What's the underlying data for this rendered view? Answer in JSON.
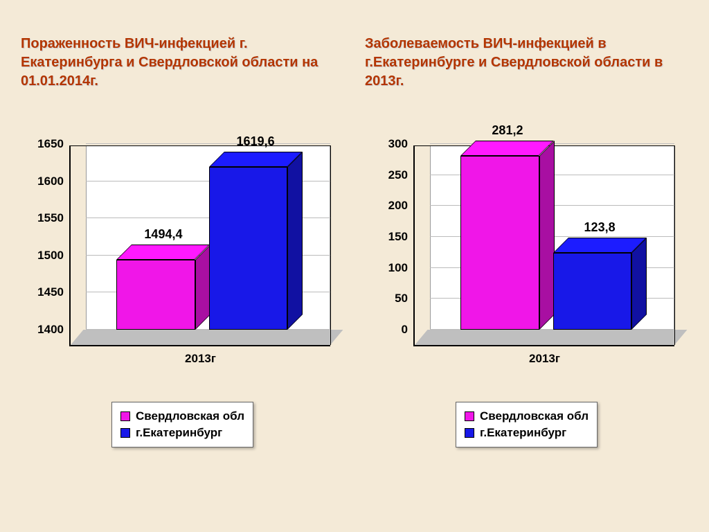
{
  "background_color": "#f4ead7",
  "title_color": "#b33500",
  "title_fontsize": 20,
  "axis_fontsize": 17,
  "series_colors": {
    "sverdlovsk": "#f016e8",
    "ekb": "#1818e8"
  },
  "legend": {
    "items": [
      {
        "label": "Свердловская обл",
        "color_key": "sverdlovsk"
      },
      {
        "label": "г.Екатеринбург",
        "color_key": "ekb"
      }
    ]
  },
  "charts": [
    {
      "title": "Пораженность ВИЧ-инфекцией г. Екатеринбурга и Свердловской области на 01.01.2014г.",
      "type": "bar-3d",
      "ymin": 1400,
      "ymax": 1650,
      "ytick_step": 50,
      "yticks": [
        "1400",
        "1450",
        "1500",
        "1550",
        "1600",
        "1650"
      ],
      "xlabel": "2013г",
      "bars": [
        {
          "series": "sverdlovsk",
          "value": 1494.4,
          "label": "1494,4"
        },
        {
          "series": "ekb",
          "value": 1619.6,
          "label": "1619,6"
        }
      ]
    },
    {
      "title": "Заболеваемость ВИЧ-инфекцией в г.Екатеринбурге и Свердловской области в 2013г.",
      "type": "bar-3d",
      "ymin": 0,
      "ymax": 300,
      "ytick_step": 50,
      "yticks": [
        "0",
        "50",
        "100",
        "150",
        "200",
        "250",
        "300"
      ],
      "xlabel": "2013г",
      "bars": [
        {
          "series": "sverdlovsk",
          "value": 281.2,
          "label": "281,2"
        },
        {
          "series": "ekb",
          "value": 123.8,
          "label": "123,8"
        }
      ]
    }
  ]
}
